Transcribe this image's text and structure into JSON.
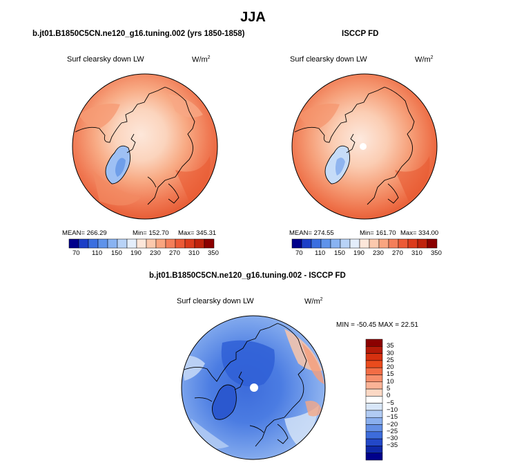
{
  "main_title": "JJA",
  "palette": {
    "full": [
      "#00008b",
      "#1c3fc7",
      "#3b6fe0",
      "#5f93ea",
      "#89b3f2",
      "#b8d3f7",
      "#e4eefb",
      "#fde7da",
      "#fcc9ad",
      "#f9a580",
      "#f47f5a",
      "#ec5a36",
      "#db3b1c",
      "#bf220c",
      "#8b0000"
    ],
    "ocean": "#e9582f"
  },
  "panels": [
    {
      "title": "b.jt01.B1850C5CN.ne120_g16.tuning.002 (yrs 1850-1858)",
      "variable": "Surf clearsky down LW",
      "unit_base": "W/m",
      "unit_exp": "2",
      "mean": "MEAN= 266.29",
      "min": "Min= 152.70",
      "max": "Max= 345.31",
      "colorbar_labels": [
        "70",
        "110",
        "150",
        "190",
        "230",
        "270",
        "310",
        "350"
      ]
    },
    {
      "title": "ISCCP FD",
      "variable": "Surf clearsky down LW",
      "unit_base": "W/m",
      "unit_exp": "2",
      "mean": "MEAN= 274.55",
      "min": "Min= 161.70",
      "max": "Max= 334.00",
      "colorbar_labels": [
        "70",
        "110",
        "150",
        "190",
        "230",
        "270",
        "310",
        "350"
      ]
    }
  ],
  "diff": {
    "title": "b.jt01.B1850C5CN.ne120_g16.tuning.002 - ISCCP FD",
    "variable": "Surf clearsky down LW",
    "unit_base": "W/m",
    "unit_exp": "2",
    "minmax": "MIN = -50.45  MAX =  22.51",
    "colorbar_labels": [
      "35",
      "30",
      "25",
      "20",
      "15",
      "10",
      "5",
      "0",
      "−5",
      "−10",
      "−15",
      "−20",
      "−25",
      "−30",
      "−35"
    ],
    "colors": [
      "#8b0000",
      "#b51a08",
      "#d6300f",
      "#ea4b1d",
      "#f26d45",
      "#f78f6c",
      "#fab396",
      "#fcd8c4",
      "#ffffff",
      "#d8e6f8",
      "#b1cbf3",
      "#8aafee",
      "#648fe5",
      "#3d6cdb",
      "#2348c8",
      "#0f28a8",
      "#00008b"
    ]
  }
}
